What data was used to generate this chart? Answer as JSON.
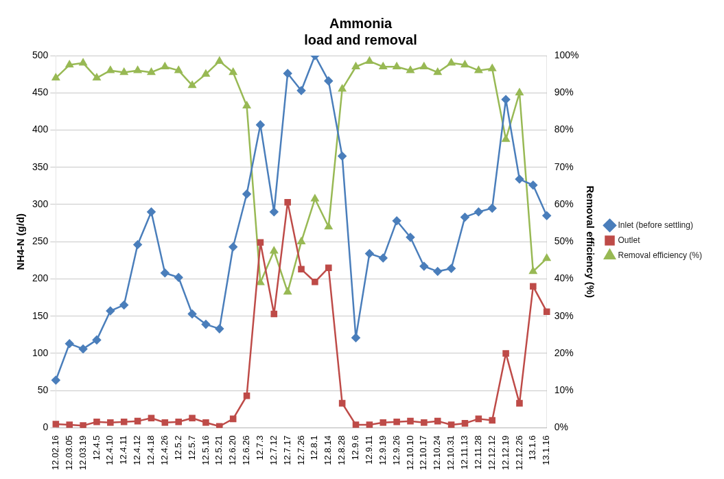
{
  "chart_data": {
    "type": "line",
    "title": "Ammonia\nload and removal",
    "ylabel": "NH4-N (g/d)",
    "y2label": "Removal efficiency (%)",
    "categories": [
      "12.02.16",
      "12.03.05",
      "12.03.19",
      "12.4.5",
      "12.4.10",
      "12.4.11",
      "12.4.12",
      "12.4.18",
      "12.4.26",
      "12.5.2",
      "12.5.7",
      "12.5.16",
      "12.5.21",
      "12.6.20",
      "12.6.26",
      "12.7.3",
      "12.7.12",
      "12.7.17",
      "12.7.26",
      "12.8.1",
      "12.8.14",
      "12.8.28",
      "12.9.6",
      "12.9.11",
      "12.9.19",
      "12.9.26",
      "12.10.10",
      "12.10.17",
      "12.10.24",
      "12.10.31",
      "12.11.13",
      "12.11.28",
      "12.12.12",
      "12.12.19",
      "12.12.26",
      "13.1.6",
      "13.1.16"
    ],
    "series": [
      {
        "name": "Inlet (before settling)",
        "color": "#4a7ebb",
        "marker": "diamond",
        "values": [
          64,
          113,
          106,
          118,
          157,
          165,
          246,
          290,
          208,
          202,
          153,
          139,
          133,
          243,
          314,
          407,
          290,
          476,
          453,
          500,
          466,
          365,
          121,
          234,
          228,
          278,
          256,
          217,
          210,
          214,
          283,
          290,
          295,
          441,
          334,
          326,
          285
        ]
      },
      {
        "name": "Outlet",
        "color": "#be4b48",
        "marker": "square",
        "values": [
          5,
          4,
          3,
          8,
          7,
          8,
          9,
          13,
          7,
          8,
          13,
          7,
          2,
          12,
          43,
          249,
          153,
          303,
          213,
          196,
          215,
          33,
          4,
          4,
          7,
          8,
          9,
          7,
          9,
          4,
          6,
          12,
          10,
          100,
          33,
          190,
          156
        ]
      },
      {
        "name": "Removal efficiency (%)",
        "color": "#98b954",
        "marker": "triangle",
        "axis": "y2",
        "values": [
          94,
          97.5,
          98,
          94,
          96,
          95.5,
          96,
          95.5,
          97,
          96,
          92,
          95,
          98.5,
          95.5,
          86.5,
          39,
          47.5,
          36.5,
          50,
          61.5,
          54,
          91,
          97,
          98.5,
          97,
          97,
          96,
          97,
          95.5,
          98,
          97.5,
          96,
          96.5,
          77.5,
          90,
          42,
          45.5
        ]
      }
    ],
    "ylim": [
      0,
      500
    ],
    "yticks": [
      0,
      50,
      100,
      150,
      200,
      250,
      300,
      350,
      400,
      450,
      500
    ],
    "y2lim": [
      0,
      100
    ],
    "y2ticks": [
      {
        "value": 0,
        "label": "0%"
      },
      {
        "value": 10,
        "label": "10%"
      },
      {
        "value": 20,
        "label": "20%"
      },
      {
        "value": 30,
        "label": "30%"
      },
      {
        "value": 40,
        "label": "40%"
      },
      {
        "value": 50,
        "label": "50%"
      },
      {
        "value": 60,
        "label": "60%"
      },
      {
        "value": 70,
        "label": "70%"
      },
      {
        "value": 80,
        "label": "80%"
      },
      {
        "value": 90,
        "label": "90%"
      },
      {
        "value": 100,
        "label": "100%"
      }
    ],
    "grid": "y",
    "legend": "right",
    "line_style": "solid"
  }
}
